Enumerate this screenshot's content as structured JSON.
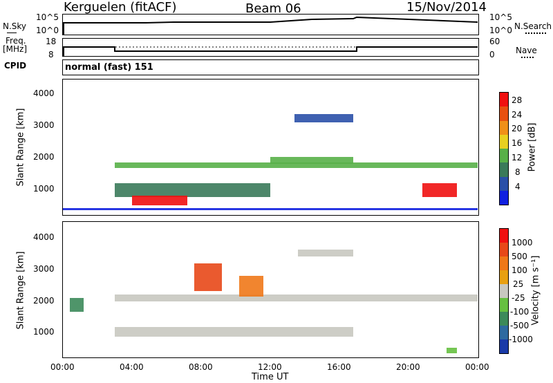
{
  "header": {
    "station": "Kerguelen (fitACF)",
    "beam": "Beam 06",
    "date": "15/Nov/2014"
  },
  "noise_panel": {
    "left_label": "N.Sky",
    "right_label": "N.Search",
    "left_ticks": [
      "10^5",
      "10^0"
    ],
    "right_ticks": [
      "10^5",
      "10^0"
    ]
  },
  "freq_panel": {
    "left_label_1": "Freq.",
    "left_label_2": "[MHz]",
    "right_label": "Nave",
    "left_ticks": [
      "18",
      "8"
    ],
    "right_ticks": [
      "60",
      "0"
    ]
  },
  "cpid": {
    "label": "CPID",
    "value": "normal (fast) 151"
  },
  "power_panel": {
    "ylabel": "Slant Range [km]",
    "yticks": [
      "4000",
      "3000",
      "2000",
      "1000"
    ],
    "colorbar_label": "Power [dB]",
    "colorbar_ticks": [
      "28",
      "24",
      "20",
      "16",
      "12",
      "8",
      "4"
    ],
    "colors": [
      "#1020e0",
      "#2a50a8",
      "#3a7a5a",
      "#58b048",
      "#e8d020",
      "#f09018",
      "#e85010",
      "#f01010"
    ]
  },
  "velocity_panel": {
    "ylabel": "Slant Range [km]",
    "yticks": [
      "4000",
      "3000",
      "2000",
      "1000"
    ],
    "colorbar_label": "Velocity [m s⁻¹]",
    "colorbar_ticks": [
      "1000",
      "500",
      "100",
      "25",
      "-25",
      "-100",
      "-500",
      "-1000"
    ],
    "colors": [
      "#1a3aa8",
      "#2e6aa0",
      "#3c8a5a",
      "#66c040",
      "#c8c8c0",
      "#e8a010",
      "#f07818",
      "#e84818",
      "#f01010"
    ]
  },
  "time_axis": {
    "xlabel": "Time UT",
    "ticks": [
      "00:00",
      "04:00",
      "08:00",
      "12:00",
      "16:00",
      "20:00",
      "00:00"
    ]
  }
}
